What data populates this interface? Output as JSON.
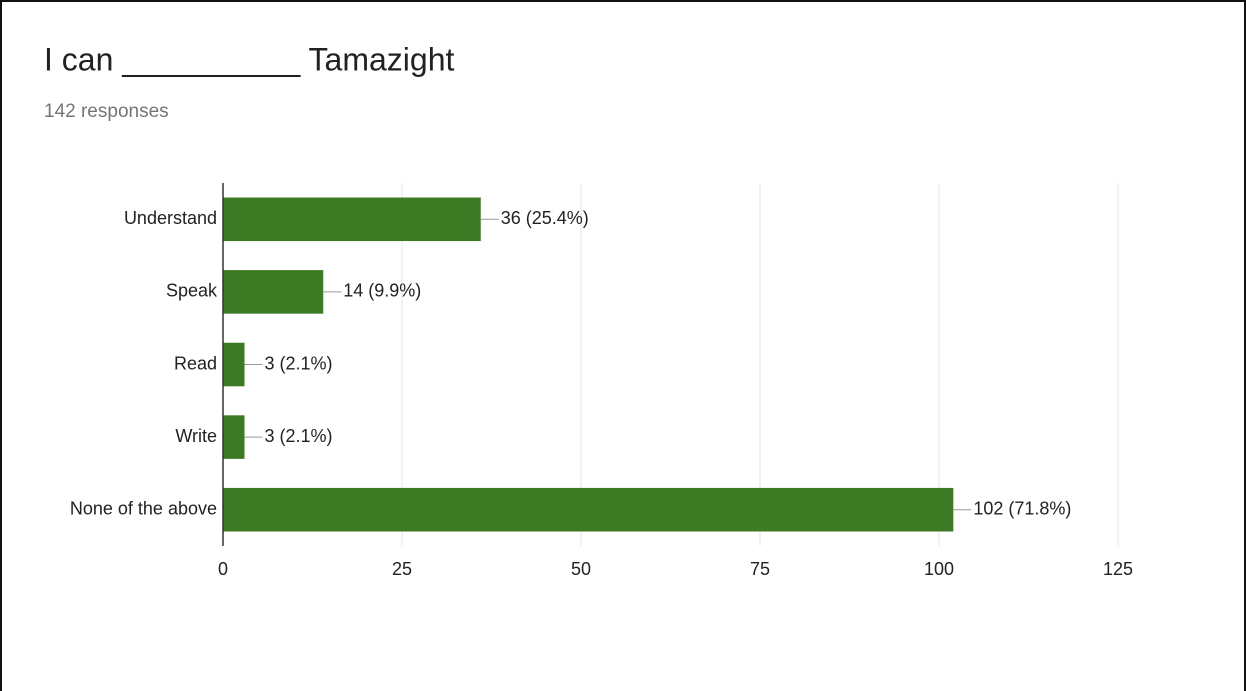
{
  "chart_data": {
    "type": "bar",
    "orientation": "horizontal",
    "title": "I can __________ Tamazight",
    "subtitle": "142 responses",
    "categories": [
      "Understand",
      "Speak",
      "Read",
      "Write",
      "None of the above"
    ],
    "values": [
      36,
      14,
      3,
      3,
      102
    ],
    "value_labels": [
      "36 (25.4%)",
      "14 (9.9%)",
      "3 (2.1%)",
      "3 (2.1%)",
      "102 (71.8%)"
    ],
    "color": "#3c7a23",
    "xlim": [
      0,
      125
    ],
    "xticks": [
      0,
      25,
      50,
      75,
      100,
      125
    ],
    "grid": true
  }
}
